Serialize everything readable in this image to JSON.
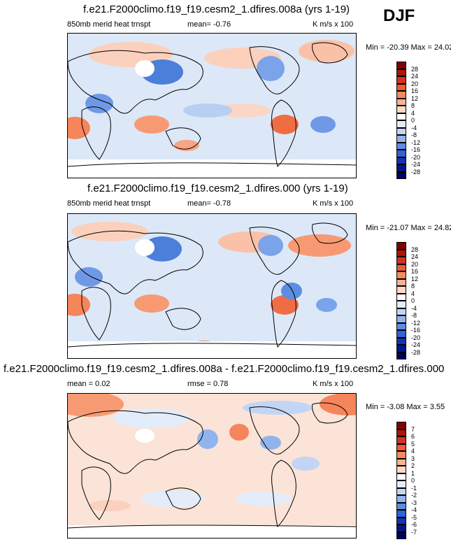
{
  "season": "DJF",
  "panels": [
    {
      "title": "f.e21.F2000climo.f19_f19.cesm2_1.dfires.008a (yrs 1-19)",
      "left_label": "850mb merid heat trnspt",
      "mid_label": "mean=  -0.76",
      "units": "K m/s x 100",
      "minmax": "Min = -20.39 Max =  24.02",
      "colorbar_labels": [
        "28",
        "24",
        "20",
        "16",
        "12",
        "8",
        "4",
        "0",
        "-4",
        "-8",
        "-12",
        "-16",
        "-20",
        "-24",
        "-28"
      ]
    },
    {
      "title": "f.e21.F2000climo.f19_f19.cesm2_1.dfires.000 (yrs 1-19)",
      "left_label": "850mb merid heat trnspt",
      "mid_label": "mean=  -0.78",
      "units": "K m/s x 100",
      "minmax": "Min = -21.07 Max =  24.82",
      "colorbar_labels": [
        "28",
        "24",
        "20",
        "16",
        "12",
        "8",
        "4",
        "0",
        "-4",
        "-8",
        "-12",
        "-16",
        "-20",
        "-24",
        "-28"
      ]
    },
    {
      "title": "f.e21.F2000climo.f19_f19.cesm2_1.dfires.008a - f.e21.F2000climo.f19_f19.cesm2_1.dfires.000",
      "left_label": "mean =  0.02",
      "mid_label": "rmse =  0.78",
      "units": "K m/s x 100",
      "minmax": "Min =  -3.08 Max =  3.55",
      "colorbar_labels": [
        "7",
        "6",
        "5",
        "4",
        "3",
        "2",
        "1",
        "0",
        "-1",
        "-2",
        "-3",
        "-4",
        "-5",
        "-6",
        "-7"
      ]
    }
  ],
  "colorbar_colors": [
    "#800000",
    "#b01405",
    "#d7301f",
    "#ef5a32",
    "#f88a5a",
    "#fbb092",
    "#fdd9c6",
    "#ffffff",
    "#e3ecfa",
    "#c2d5f5",
    "#92b4ee",
    "#5c8de2",
    "#2f63d6",
    "#1234b8",
    "#06148a",
    "#000066"
  ]
}
